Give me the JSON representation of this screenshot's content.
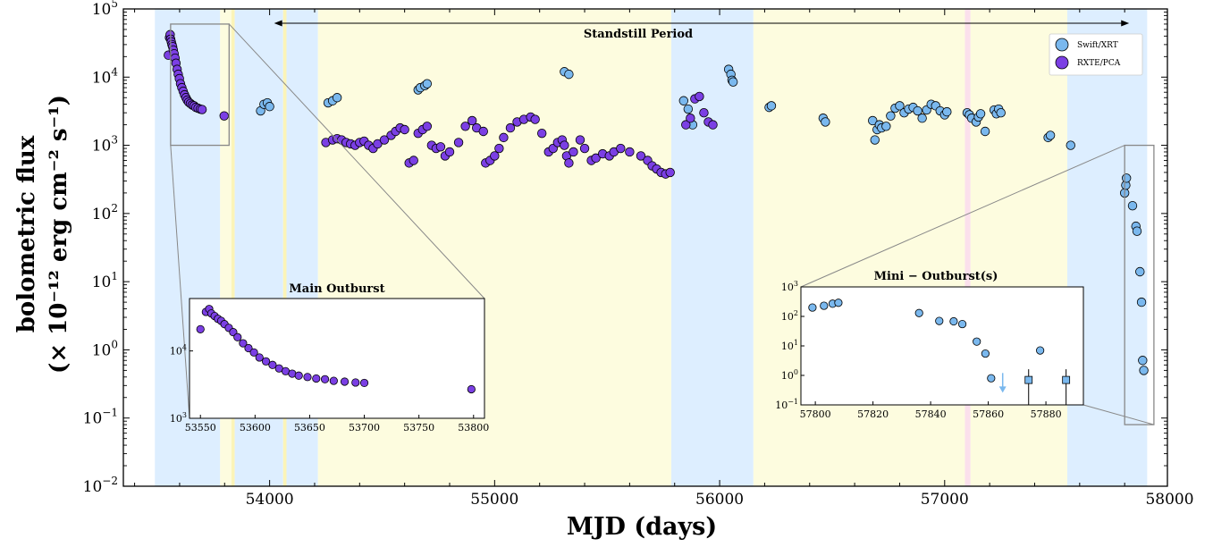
{
  "chart_data": {
    "type": "scatter",
    "xlabel": "MJD (days)",
    "ylabel_line1": "bolometric flux",
    "ylabel_line2": "(× 10⁻¹² erg cm⁻² s⁻¹)",
    "xlim": [
      53350,
      57990
    ],
    "ylim": [
      0.01,
      100000
    ],
    "yscale": "log",
    "x_ticks": [
      54000,
      55000,
      56000,
      57000,
      58000
    ],
    "y_ticks": [
      {
        "value": 0.01,
        "base": "10",
        "exp": "−2"
      },
      {
        "value": 0.1,
        "base": "10",
        "exp": "−1"
      },
      {
        "value": 1,
        "base": "10",
        "exp": "0"
      },
      {
        "value": 10,
        "base": "10",
        "exp": "1"
      },
      {
        "value": 100,
        "base": "10",
        "exp": "2"
      },
      {
        "value": 1000,
        "base": "10",
        "exp": "3"
      },
      {
        "value": 10000,
        "base": "10",
        "exp": "4"
      },
      {
        "value": 100000,
        "base": "10",
        "exp": "5"
      }
    ],
    "annotation": {
      "text": "Standstill Period",
      "x_start": 54020,
      "x_end": 57820
    },
    "legend": {
      "placement": "top-right",
      "entries": [
        {
          "label": "Swift/XRT",
          "color": "#7ab8ee"
        },
        {
          "label": "RXTE/PCA",
          "color": "#7b3fe4"
        }
      ]
    },
    "shaded_regions": [
      {
        "x0": 53490,
        "x1": 53780,
        "color": "#ddeeff"
      },
      {
        "x0": 53780,
        "x1": 53830,
        "color": "#fdfcdf"
      },
      {
        "x0": 53830,
        "x1": 53845,
        "color": "#fbf4b8"
      },
      {
        "x0": 53845,
        "x1": 54060,
        "color": "#ddeeff"
      },
      {
        "x0": 54060,
        "x1": 54075,
        "color": "#fbf4b8"
      },
      {
        "x0": 54075,
        "x1": 54215,
        "color": "#ddeeff"
      },
      {
        "x0": 54215,
        "x1": 55785,
        "color": "#fdfcdf"
      },
      {
        "x0": 55785,
        "x1": 56150,
        "color": "#ddeeff"
      },
      {
        "x0": 56150,
        "x1": 57090,
        "color": "#fdfcdf"
      },
      {
        "x0": 57090,
        "x1": 57115,
        "color": "#fbe0ec"
      },
      {
        "x0": 57115,
        "x1": 57545,
        "color": "#fdfcdf"
      },
      {
        "x0": 57545,
        "x1": 57900,
        "color": "#ddeeff"
      }
    ],
    "series": [
      {
        "name": "RXTE/PCA",
        "color": "#7b3fe4",
        "points": [
          [
            53550,
            21000
          ],
          [
            53555,
            38000
          ],
          [
            53558,
            42000
          ],
          [
            53560,
            36000
          ],
          [
            53563,
            33000
          ],
          [
            53566,
            30000
          ],
          [
            53569,
            28000
          ],
          [
            53572,
            25000
          ],
          [
            53576,
            22000
          ],
          [
            53580,
            19000
          ],
          [
            53584,
            16000
          ],
          [
            53589,
            13000
          ],
          [
            53594,
            11000
          ],
          [
            53599,
            9500
          ],
          [
            53604,
            8000
          ],
          [
            53610,
            7000
          ],
          [
            53616,
            6200
          ],
          [
            53622,
            5500
          ],
          [
            53628,
            5000
          ],
          [
            53634,
            4600
          ],
          [
            53640,
            4300
          ],
          [
            53648,
            4100
          ],
          [
            53656,
            3900
          ],
          [
            53664,
            3800
          ],
          [
            53672,
            3600
          ],
          [
            53682,
            3500
          ],
          [
            53692,
            3400
          ],
          [
            53700,
            3350
          ],
          [
            53798,
            2700
          ],
          [
            54250,
            1100
          ],
          [
            54280,
            1200
          ],
          [
            54300,
            1250
          ],
          [
            54320,
            1200
          ],
          [
            54340,
            1100
          ],
          [
            54360,
            1050
          ],
          [
            54380,
            1000
          ],
          [
            54400,
            1100
          ],
          [
            54420,
            1150
          ],
          [
            54440,
            1000
          ],
          [
            54460,
            900
          ],
          [
            54480,
            1050
          ],
          [
            54510,
            1200
          ],
          [
            54540,
            1400
          ],
          [
            54560,
            1600
          ],
          [
            54580,
            1800
          ],
          [
            54600,
            1700
          ],
          [
            54620,
            550
          ],
          [
            54640,
            600
          ],
          [
            54660,
            1500
          ],
          [
            54680,
            1700
          ],
          [
            54700,
            1900
          ],
          [
            54720,
            1000
          ],
          [
            54740,
            900
          ],
          [
            54760,
            950
          ],
          [
            54780,
            700
          ],
          [
            54800,
            800
          ],
          [
            54840,
            1100
          ],
          [
            54870,
            1900
          ],
          [
            54900,
            2300
          ],
          [
            54920,
            1800
          ],
          [
            54950,
            1600
          ],
          [
            54960,
            550
          ],
          [
            54980,
            600
          ],
          [
            55000,
            700
          ],
          [
            55020,
            900
          ],
          [
            55040,
            1300
          ],
          [
            55070,
            1800
          ],
          [
            55100,
            2200
          ],
          [
            55130,
            2400
          ],
          [
            55160,
            2600
          ],
          [
            55180,
            2400
          ],
          [
            55210,
            1500
          ],
          [
            55240,
            800
          ],
          [
            55260,
            900
          ],
          [
            55280,
            1100
          ],
          [
            55300,
            1200
          ],
          [
            55310,
            1000
          ],
          [
            55320,
            700
          ],
          [
            55330,
            550
          ],
          [
            55350,
            800
          ],
          [
            55380,
            1200
          ],
          [
            55400,
            900
          ],
          [
            55430,
            600
          ],
          [
            55450,
            650
          ],
          [
            55480,
            750
          ],
          [
            55510,
            700
          ],
          [
            55530,
            800
          ],
          [
            55560,
            900
          ],
          [
            55600,
            800
          ],
          [
            55650,
            700
          ],
          [
            55680,
            600
          ],
          [
            55700,
            500
          ],
          [
            55720,
            450
          ],
          [
            55740,
            400
          ],
          [
            55760,
            380
          ],
          [
            55780,
            400
          ],
          [
            55850,
            2000
          ],
          [
            55870,
            2500
          ],
          [
            55890,
            4800
          ],
          [
            55910,
            5200
          ],
          [
            55930,
            3000
          ],
          [
            55950,
            2200
          ],
          [
            55970,
            2000
          ]
        ]
      },
      {
        "name": "Swift/XRT",
        "color": "#7ab8ee",
        "points": [
          [
            53960,
            3200
          ],
          [
            53975,
            4000
          ],
          [
            53990,
            4200
          ],
          [
            54000,
            3700
          ],
          [
            54260,
            4200
          ],
          [
            54280,
            4500
          ],
          [
            54300,
            5000
          ],
          [
            54660,
            6500
          ],
          [
            54670,
            7000
          ],
          [
            54690,
            7500
          ],
          [
            54700,
            8000
          ],
          [
            55310,
            12000
          ],
          [
            55330,
            11000
          ],
          [
            55840,
            4500
          ],
          [
            55860,
            3400
          ],
          [
            55880,
            2000
          ],
          [
            56040,
            13000
          ],
          [
            56050,
            11000
          ],
          [
            56055,
            9000
          ],
          [
            56060,
            8500
          ],
          [
            56220,
            3600
          ],
          [
            56230,
            3800
          ],
          [
            56460,
            2500
          ],
          [
            56470,
            2200
          ],
          [
            56680,
            2300
          ],
          [
            56690,
            1200
          ],
          [
            56700,
            1700
          ],
          [
            56710,
            2000
          ],
          [
            56720,
            1800
          ],
          [
            56740,
            1900
          ],
          [
            56760,
            2700
          ],
          [
            56780,
            3500
          ],
          [
            56800,
            3800
          ],
          [
            56820,
            3000
          ],
          [
            56840,
            3400
          ],
          [
            56860,
            3600
          ],
          [
            56880,
            3200
          ],
          [
            56900,
            2500
          ],
          [
            56920,
            3300
          ],
          [
            56940,
            4000
          ],
          [
            56960,
            3800
          ],
          [
            56980,
            3200
          ],
          [
            57000,
            2800
          ],
          [
            57010,
            3100
          ],
          [
            57100,
            3000
          ],
          [
            57110,
            2800
          ],
          [
            57120,
            2500
          ],
          [
            57140,
            2200
          ],
          [
            57150,
            2600
          ],
          [
            57160,
            2900
          ],
          [
            57180,
            1600
          ],
          [
            57220,
            3300
          ],
          [
            57230,
            2900
          ],
          [
            57240,
            3400
          ],
          [
            57250,
            3000
          ],
          [
            57460,
            1300
          ],
          [
            57470,
            1400
          ],
          [
            57560,
            1000
          ],
          [
            57800,
            200
          ],
          [
            57805,
            260
          ],
          [
            57808,
            330
          ],
          [
            57835,
            130
          ],
          [
            57850,
            65
          ],
          [
            57855,
            55
          ],
          [
            57868,
            14
          ],
          [
            57875,
            5
          ],
          [
            57880,
            0.7
          ],
          [
            57885,
            0.5
          ]
        ]
      }
    ],
    "insets": [
      {
        "title": "Main Outburst",
        "xlim": [
          53540,
          53810
        ],
        "ylim": [
          1000,
          60000
        ],
        "x_ticks": [
          53550,
          53600,
          53650,
          53700,
          53750,
          53800
        ],
        "y_ticks": [
          {
            "value": 1000,
            "base": "10",
            "exp": "3"
          },
          {
            "value": 10000,
            "base": "10",
            "exp": "4"
          }
        ],
        "source": "RXTE/PCA",
        "zoom_region": {
          "x0": 53560,
          "x1": 53820,
          "y0": 1000,
          "y1": 60000
        }
      },
      {
        "title": "Mini − Outburst(s)",
        "xlim": [
          57795,
          57893
        ],
        "ylim": [
          0.1,
          1000
        ],
        "x_ticks": [
          57800,
          57820,
          57840,
          57860,
          57880
        ],
        "y_ticks": [
          {
            "value": 0.1,
            "base": "10",
            "exp": "−1"
          },
          {
            "value": 1,
            "base": "10",
            "exp": "0"
          },
          {
            "value": 10,
            "base": "10",
            "exp": "1"
          },
          {
            "value": 100,
            "base": "10",
            "exp": "2"
          },
          {
            "value": 1000,
            "base": "10",
            "exp": "3"
          }
        ],
        "source": "Swift/XRT",
        "points": [
          [
            57799,
            200
          ],
          [
            57803,
            230
          ],
          [
            57806,
            270
          ],
          [
            57808,
            290
          ],
          [
            57836,
            130
          ],
          [
            57843,
            70
          ],
          [
            57848,
            68
          ],
          [
            57851,
            55
          ],
          [
            57856,
            14
          ],
          [
            57859,
            5.5
          ],
          [
            57861,
            0.8
          ],
          [
            57878,
            7
          ]
        ],
        "squares": [
          [
            57874,
            0.7
          ],
          [
            57887,
            0.7
          ]
        ],
        "upper_limits": [
          [
            57865,
            0.6
          ]
        ],
        "zoom_region": {
          "x0": 57800,
          "x1": 57930,
          "y0": 0.08,
          "y1": 1000
        }
      }
    ]
  }
}
